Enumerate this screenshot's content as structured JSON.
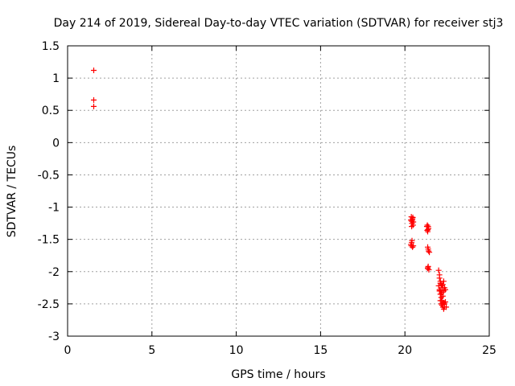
{
  "chart_data": {
    "type": "scatter",
    "title": "Day 214 of 2019, Sidereal Day-to-day VTEC variation (SDTVAR) for receiver stj3",
    "xlabel": "GPS time / hours",
    "ylabel": "SDTVAR / TECUs",
    "xlim": [
      0,
      25
    ],
    "ylim": [
      -3,
      1.5
    ],
    "xticks": [
      0,
      5,
      10,
      15,
      20,
      25
    ],
    "xtick_labels": [
      "0",
      "5",
      "10",
      "15",
      "20",
      "25"
    ],
    "yticks": [
      -3,
      -2.5,
      -2,
      -1.5,
      -1,
      -0.5,
      0,
      0.5,
      1,
      1.5
    ],
    "ytick_labels": [
      "-3",
      "-2.5",
      "-2",
      "-1.5",
      "-1",
      "-0.5",
      "0",
      "0.5",
      "1",
      "1.5"
    ],
    "grid": true,
    "marker": "+",
    "color": "#ff0000",
    "series": [
      {
        "name": "SDTVAR",
        "x": [
          1.55,
          1.55,
          1.55,
          20.35,
          20.38,
          20.4,
          20.42,
          20.45,
          20.48,
          20.5,
          20.4,
          20.44,
          20.47,
          20.35,
          20.4,
          20.45,
          20.5,
          20.42,
          20.38,
          21.3,
          21.33,
          21.36,
          21.4,
          21.35,
          21.38,
          21.32,
          21.35,
          21.4,
          21.45,
          21.38,
          21.35,
          21.38,
          21.42,
          21.36,
          22.0,
          22.05,
          22.1,
          22.15,
          22.2,
          22.25,
          22.3,
          22.35,
          22.4,
          22.05,
          22.1,
          22.15,
          22.2,
          22.25,
          22.3,
          22.35,
          22.0,
          22.05,
          22.1,
          22.15,
          22.2,
          22.25,
          22.1,
          22.15,
          22.2,
          22.25,
          22.3,
          22.35,
          22.4,
          22.45,
          22.05,
          22.1,
          22.2,
          22.3
        ],
        "y": [
          1.12,
          0.66,
          0.56,
          -1.2,
          -1.15,
          -1.22,
          -1.25,
          -1.18,
          -1.28,
          -1.23,
          -1.3,
          -1.2,
          -1.16,
          -1.58,
          -1.55,
          -1.62,
          -1.6,
          -1.52,
          -1.6,
          -1.3,
          -1.28,
          -1.35,
          -1.33,
          -1.38,
          -1.3,
          -1.36,
          -1.62,
          -1.68,
          -1.7,
          -1.65,
          -1.95,
          -1.92,
          -1.97,
          -1.94,
          -1.98,
          -2.05,
          -2.15,
          -2.2,
          -2.25,
          -2.2,
          -2.3,
          -2.25,
          -2.28,
          -2.3,
          -2.35,
          -2.4,
          -2.45,
          -2.5,
          -2.48,
          -2.55,
          -2.22,
          -2.28,
          -2.3,
          -2.35,
          -2.32,
          -2.38,
          -2.45,
          -2.5,
          -2.52,
          -2.55,
          -2.58,
          -2.5,
          -2.47,
          -2.55,
          -2.1,
          -2.18,
          -2.22,
          -2.15
        ]
      }
    ]
  }
}
